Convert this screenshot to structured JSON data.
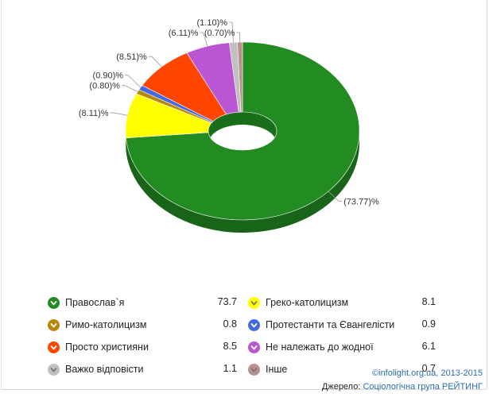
{
  "chart_data": {
    "type": "pie",
    "slices": [
      {
        "name": "Православ`я",
        "value": 73.77,
        "legend_value": "73.7",
        "label": "(73.77)%",
        "color": "#228b22",
        "side": "dark"
      },
      {
        "name": "Греко-католицизм",
        "value": 8.11,
        "legend_value": "8.1",
        "label": "(8.11)%",
        "color": "#ffff00",
        "side": "light"
      },
      {
        "name": "Римо-католицизм",
        "value": 0.8,
        "legend_value": "0.8",
        "label": "(0.80)%",
        "color": "#b8860b",
        "side": "dark"
      },
      {
        "name": "Протестанти та Євангелісти",
        "value": 0.9,
        "legend_value": "0.9",
        "label": "(0.90)%",
        "color": "#4169e1",
        "side": "dark"
      },
      {
        "name": "Просто християни",
        "value": 8.51,
        "legend_value": "8.5",
        "label": "(8.51)%",
        "color": "#ff4500",
        "side": "dark"
      },
      {
        "name": "Не належать до жодної",
        "value": 6.11,
        "legend_value": "6.1",
        "label": "(6.11)%",
        "color": "#ba55d3",
        "side": "dark"
      },
      {
        "name": "Важко відповісти",
        "value": 1.1,
        "legend_value": "1.1",
        "label": "(1.10)%",
        "color": "#c0c0c0",
        "side": "light"
      },
      {
        "name": "Інше",
        "value": 0.7,
        "legend_value": "0.7",
        "label": "(0.70)%",
        "color": "#bc8f8f",
        "side": "light"
      }
    ],
    "donut": true,
    "three_d": true,
    "legend_placement": "bottom"
  },
  "credits": {
    "copyright": "©infolight.org.ua, 2013-2015",
    "source_prefix": "Джерело: ",
    "source_name": "Соціологічна група РЕЙТИНГ"
  }
}
